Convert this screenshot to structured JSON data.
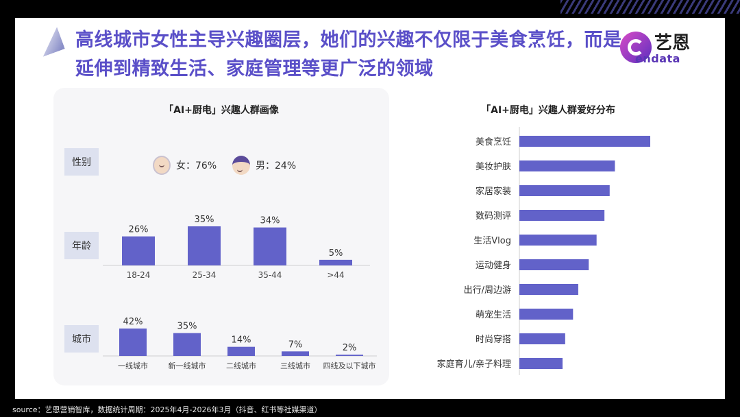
{
  "title": "高线城市女性主导兴趣圈层，她们的兴趣不仅限于美食烹饪，而是延伸到精致生活、家庭管理等更广泛的领域",
  "logo": {
    "cn": "艺恩",
    "en": "endata"
  },
  "left_panel": {
    "title": "「AI+厨电」兴趣人群画像",
    "gender": {
      "label": "性别",
      "female": "女：76%",
      "male": "男：24%"
    },
    "age_label": "年龄",
    "city_label": "城市"
  },
  "right_panel": {
    "title": "「AI+厨电」兴趣人群爱好分布"
  },
  "footer": "source：艺恩营销智库，数据统计周期：2025年4月-2026年3月（抖音、红书等社媒渠道）",
  "colors": {
    "accent": "#5a4fc8",
    "bar": "#6262c9"
  },
  "chart_data": [
    {
      "type": "bar",
      "categories": [
        "18-24",
        "25-34",
        "35-44",
        ">44"
      ],
      "values": [
        26,
        35,
        34,
        5
      ],
      "labels": [
        "26%",
        "35%",
        "34%",
        "5%"
      ]
    },
    {
      "type": "bar",
      "categories": [
        "一线城市",
        "新一线城市",
        "二线城市",
        "三线城市",
        "四线及以下城市"
      ],
      "values": [
        42,
        35,
        14,
        7,
        2
      ],
      "labels": [
        "42%",
        "35%",
        "14%",
        "7%",
        "2%"
      ]
    },
    {
      "type": "bar",
      "orientation": "horizontal",
      "categories": [
        "美食烹饪",
        "美妆护肤",
        "家居家装",
        "数码测评",
        "生活Vlog",
        "运动健身",
        "出行/周边游",
        "萌宠生活",
        "时尚穿搭",
        "家庭育儿/亲子料理"
      ],
      "values": [
        100,
        73,
        69,
        65,
        59,
        53,
        45,
        41,
        35,
        33
      ]
    }
  ]
}
